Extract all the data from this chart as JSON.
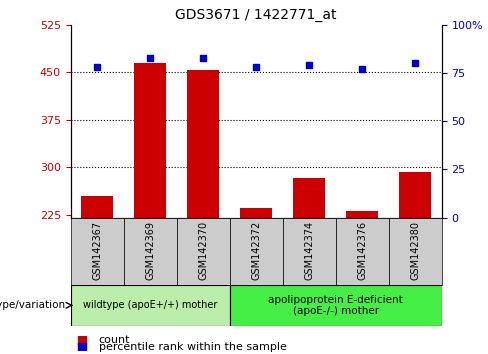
{
  "title": "GDS3671 / 1422771_at",
  "samples": [
    "GSM142367",
    "GSM142369",
    "GSM142370",
    "GSM142372",
    "GSM142374",
    "GSM142376",
    "GSM142380"
  ],
  "counts": [
    255,
    465,
    453,
    235,
    283,
    230,
    293
  ],
  "percentiles": [
    78,
    83,
    83,
    78,
    79,
    77,
    80
  ],
  "ylim_left": [
    220,
    525
  ],
  "ylim_right": [
    0,
    100
  ],
  "yticks_left": [
    225,
    300,
    375,
    450,
    525
  ],
  "yticks_right": [
    0,
    25,
    50,
    75,
    100
  ],
  "ytick_labels_right": [
    "0",
    "25",
    "50",
    "75",
    "100%"
  ],
  "bar_color": "#cc0000",
  "scatter_color": "#0000cc",
  "bar_width": 0.6,
  "n_group1": 3,
  "n_group2": 4,
  "group1_label": "wildtype (apoE+/+) mother",
  "group2_label": "apolipoprotein E-deficient\n(apoE-/-) mother",
  "group1_color": "#bbeeaa",
  "group2_color": "#44ee44",
  "genotype_label": "genotype/variation",
  "legend_count_label": "count",
  "legend_percentile_label": "percentile rank within the sample",
  "axis_left_color": "#cc0000",
  "axis_right_color": "#0000cc",
  "tick_label_bg_color": "#cccccc",
  "gridline_vals": [
    300,
    375,
    450
  ]
}
